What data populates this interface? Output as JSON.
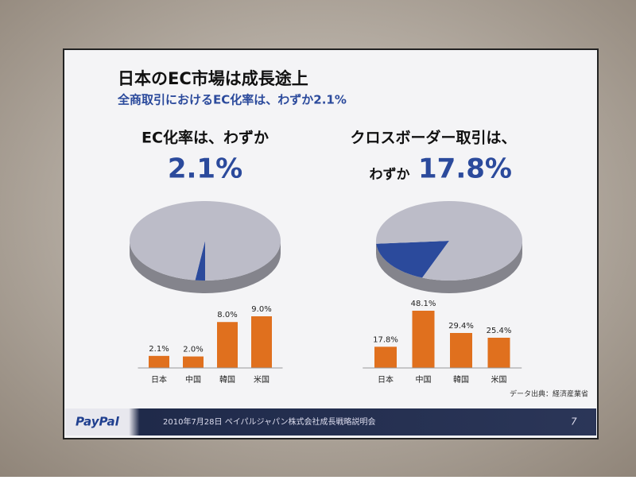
{
  "slide": {
    "title": "日本のEC市場は成長途上",
    "subtitle": "全商取引におけるEC化率は、わずか2.1%",
    "source": "データ出典：経済産業省",
    "logo": "PayPal",
    "footer": "2010年7月28日 ペイパルジャパン株式会社成長戦略説明会",
    "page": "7"
  },
  "chart_data": [
    {
      "type": "pie",
      "title": "EC化率は、わずか",
      "values": [
        2.1,
        97.9
      ],
      "value_labels": [
        "2.1%",
        null
      ],
      "colors": [
        "#2b4a9c",
        "#bcbcc8"
      ]
    },
    {
      "type": "pie",
      "title": "クロスボーダー取引は、",
      "subtitle": "わずか",
      "values": [
        17.8,
        82.2
      ],
      "value_labels": [
        "17.8%",
        null
      ],
      "colors": [
        "#2b4a9c",
        "#bcbcc8"
      ]
    },
    {
      "type": "bar",
      "categories": [
        "日本",
        "中国",
        "韓国",
        "米国"
      ],
      "values": [
        2.1,
        2.0,
        8.0,
        9.0
      ],
      "value_labels": [
        "2.1%",
        "2.0%",
        "8.0%",
        "9.0%"
      ],
      "color": "#e0701e"
    },
    {
      "type": "bar",
      "categories": [
        "日本",
        "中国",
        "韓国",
        "米国"
      ],
      "values": [
        17.8,
        48.1,
        29.4,
        25.4
      ],
      "value_labels": [
        "17.8%",
        "48.1%",
        "29.4%",
        "25.4%"
      ],
      "color": "#e0701e"
    }
  ]
}
